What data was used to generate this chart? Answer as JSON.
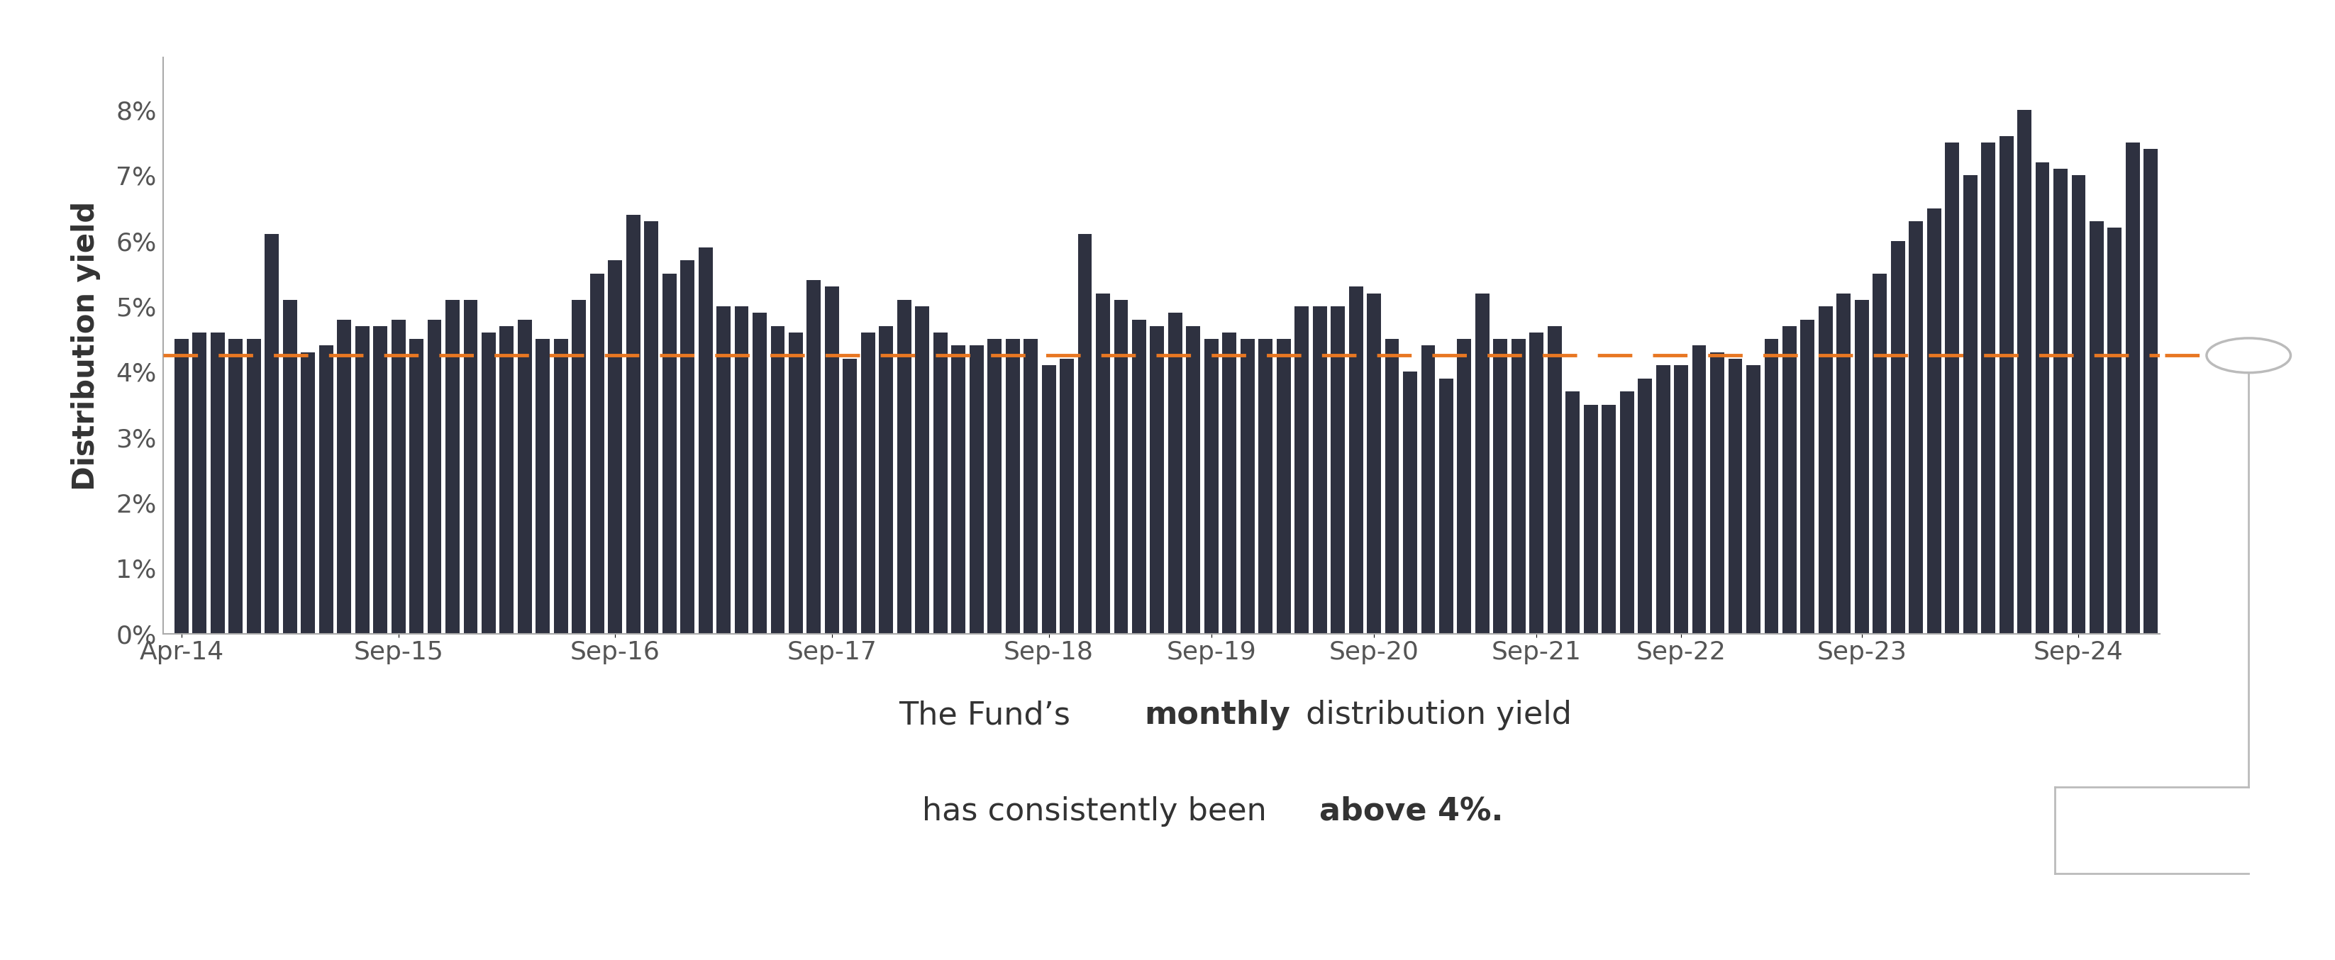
{
  "bar_color": "#2e3140",
  "dashed_line_color": "#E87722",
  "dashed_line_y": 4.25,
  "connector_color": "#bbbbbb",
  "circle_color": "#bbbbbb",
  "ylabel": "Distribution yield",
  "background_color": "#ffffff",
  "annotation_fontsize": 32,
  "ylabel_fontsize": 30,
  "tick_fontsize": 26,
  "values": [
    4.5,
    4.6,
    4.6,
    4.5,
    4.5,
    6.1,
    5.1,
    4.3,
    4.4,
    4.8,
    4.7,
    4.7,
    4.8,
    4.5,
    4.8,
    5.1,
    5.1,
    4.6,
    4.7,
    4.8,
    4.5,
    4.5,
    5.1,
    5.5,
    5.7,
    6.4,
    6.3,
    5.5,
    5.7,
    5.9,
    5.0,
    5.0,
    4.9,
    4.7,
    4.6,
    5.4,
    5.3,
    4.2,
    4.6,
    4.7,
    5.1,
    5.0,
    4.6,
    4.4,
    4.4,
    4.5,
    4.5,
    4.5,
    4.1,
    4.2,
    6.1,
    5.2,
    5.1,
    4.8,
    4.7,
    4.9,
    4.7,
    4.5,
    4.6,
    4.5,
    4.5,
    4.5,
    5.0,
    5.0,
    5.0,
    5.3,
    5.2,
    4.5,
    4.0,
    4.4,
    3.9,
    4.5,
    5.2,
    4.5,
    4.5,
    4.6,
    4.7,
    3.7,
    3.5,
    3.5,
    3.7,
    3.9,
    4.1,
    4.1,
    4.4,
    4.3,
    4.2,
    4.1,
    4.5,
    4.7,
    4.8,
    5.0,
    5.2,
    5.1,
    5.5,
    6.0,
    6.3,
    6.5,
    7.5,
    7.0,
    7.5,
    7.6,
    8.0,
    7.2,
    7.1,
    7.0,
    6.3,
    6.2,
    7.5,
    7.4
  ],
  "x_tick_labels": [
    "Apr-14",
    "Sep-15",
    "Sep-16",
    "Sep-17",
    "Sep-18",
    "Sep-19",
    "Sep-20",
    "Sep-21",
    "Sep-22",
    "Sep-23",
    "Sep-24"
  ],
  "x_tick_positions": [
    0,
    12,
    24,
    36,
    48,
    57,
    66,
    75,
    83,
    93,
    105
  ],
  "ytick_labels": [
    "0%",
    "1%",
    "2%",
    "3%",
    "4%",
    "5%",
    "6%",
    "7%",
    "8%"
  ],
  "ytick_values": [
    0,
    1,
    2,
    3,
    4,
    5,
    6,
    7,
    8
  ],
  "ylim": [
    0,
    8.8
  ]
}
